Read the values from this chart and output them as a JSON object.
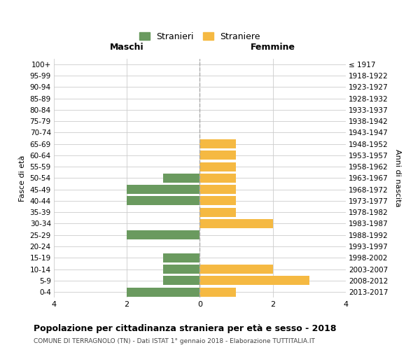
{
  "age_groups": [
    "100+",
    "95-99",
    "90-94",
    "85-89",
    "80-84",
    "75-79",
    "70-74",
    "65-69",
    "60-64",
    "55-59",
    "50-54",
    "45-49",
    "40-44",
    "35-39",
    "30-34",
    "25-29",
    "20-24",
    "15-19",
    "10-14",
    "5-9",
    "0-4"
  ],
  "birth_years": [
    "≤ 1917",
    "1918-1922",
    "1923-1927",
    "1928-1932",
    "1933-1937",
    "1938-1942",
    "1943-1947",
    "1948-1952",
    "1953-1957",
    "1958-1962",
    "1963-1967",
    "1968-1972",
    "1973-1977",
    "1978-1982",
    "1983-1987",
    "1988-1992",
    "1993-1997",
    "1998-2002",
    "2003-2007",
    "2008-2012",
    "2013-2017"
  ],
  "maschi": [
    0,
    0,
    0,
    0,
    0,
    0,
    0,
    0,
    0,
    0,
    1,
    2,
    2,
    0,
    0,
    2,
    0,
    1,
    1,
    1,
    2
  ],
  "femmine": [
    0,
    0,
    0,
    0,
    0,
    0,
    0,
    1,
    1,
    1,
    1,
    1,
    1,
    1,
    2,
    0,
    0,
    0,
    2,
    3,
    1
  ],
  "maschi_color": "#6a9a5f",
  "femmine_color": "#f5b942",
  "title": "Popolazione per cittadinanza straniera per età e sesso - 2018",
  "subtitle": "COMUNE DI TERRAGNOLO (TN) - Dati ISTAT 1° gennaio 2018 - Elaborazione TUTTITALIA.IT",
  "xlabel_left": "Maschi",
  "xlabel_right": "Femmine",
  "ylabel_left": "Fasce di età",
  "ylabel_right": "Anni di nascita",
  "legend_stranieri": "Stranieri",
  "legend_straniere": "Straniere",
  "xlim": 4,
  "bar_height": 0.8,
  "background_color": "#ffffff",
  "grid_color": "#cccccc"
}
